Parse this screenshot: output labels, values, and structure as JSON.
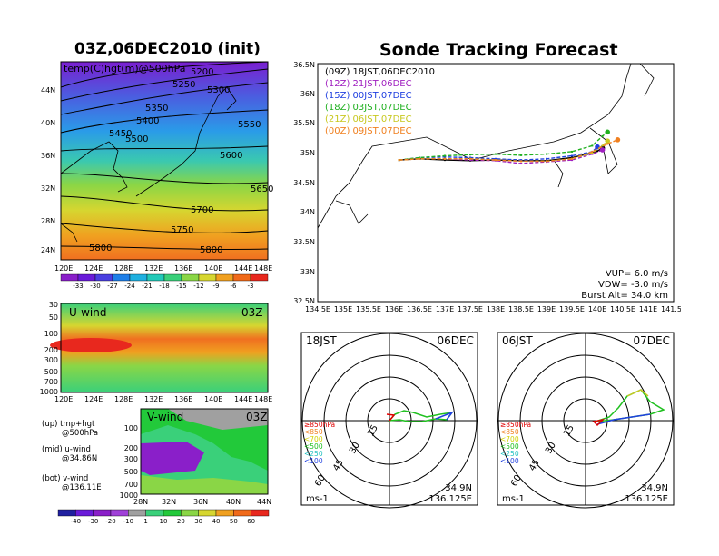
{
  "left_title": "03Z,06DEC2010 (init)",
  "main_title": "Sonde Tracking Forecast",
  "map_panel": {
    "label": "temp(C)hgt(m)@500hPa",
    "x_ticks": [
      "120E",
      "124E",
      "128E",
      "132E",
      "136E",
      "140E",
      "144E",
      "148E"
    ],
    "y_ticks": [
      "24N",
      "28N",
      "32N",
      "36N",
      "40N",
      "44N"
    ],
    "contour_labels": [
      "5200",
      "5250",
      "5300",
      "5350",
      "5400",
      "5450",
      "5500",
      "5550",
      "5600",
      "5650",
      "5700",
      "5750",
      "5800",
      "5800"
    ]
  },
  "temp_colorbar": [
    "-33",
    "-30",
    "-27",
    "-24",
    "-21",
    "-18",
    "-15",
    "-12",
    "-9",
    "-6",
    "-3"
  ],
  "temp_colors": [
    "#8a1fc9",
    "#6a1bd9",
    "#4a3fe0",
    "#1f7fe8",
    "#1fb0e0",
    "#22c9b8",
    "#3ad07a",
    "#8ad646",
    "#d6d630",
    "#f0a020",
    "#f06a1a",
    "#e8281e"
  ],
  "uwind_panel": {
    "label": "U-wind",
    "time": "03Z",
    "y_ticks": [
      "30",
      "50",
      "100",
      "200",
      "300",
      "500",
      "700",
      "1000"
    ],
    "x_ticks": [
      "120E",
      "124E",
      "128E",
      "132E",
      "136E",
      "140E",
      "144E",
      "148E"
    ]
  },
  "vwind_panel": {
    "label": "V-wind",
    "time": "03Z",
    "y_ticks": [
      "100",
      "200",
      "300",
      "500",
      "700",
      "1000"
    ],
    "x_ticks": [
      "28N",
      "32N",
      "36N",
      "40N",
      "44N"
    ]
  },
  "wind_colorbar": [
    "-40",
    "-30",
    "-20",
    "-10",
    "1",
    "10",
    "20",
    "30",
    "40",
    "50",
    "60"
  ],
  "wind_colors": [
    "#2020a0",
    "#6a1bd9",
    "#8a1fc9",
    "#a040d8",
    "#a0a0a0",
    "#3ad07a",
    "#22c93a",
    "#8ad646",
    "#d6d630",
    "#f0a020",
    "#f06a1a",
    "#e8281e"
  ],
  "notes": [
    {
      "a": "(up) tmp+hgt",
      "b": "@500hPa"
    },
    {
      "a": "(mid) u-wind",
      "b": "@34.86N"
    },
    {
      "a": "(bot) v-wind",
      "b": "@136.11E"
    }
  ],
  "track_panel": {
    "x_ticks": [
      "134.5E",
      "135E",
      "135.5E",
      "136E",
      "136.5E",
      "137E",
      "137.5E",
      "138E",
      "138.5E",
      "139E",
      "139.5E",
      "140E",
      "140.5E",
      "141E",
      "141.5E"
    ],
    "y_ticks": [
      "36.5N",
      "36N",
      "35.5N",
      "35N",
      "34.5N",
      "34N",
      "33.5N",
      "33N",
      "32.5N"
    ],
    "legend": [
      {
        "text": "(09Z)  18JST,06DEC2010",
        "color": "#000000"
      },
      {
        "text": "(12Z)  21JST,06DEC",
        "color": "#a020c0"
      },
      {
        "text": "(15Z)  00JST,07DEC",
        "color": "#2040e0"
      },
      {
        "text": "(18Z)  03JST,07DEC",
        "color": "#20b020"
      },
      {
        "text": "(21Z)  06JST,07DEC",
        "color": "#c8c820"
      },
      {
        "text": "(00Z)  09JST,07DEC",
        "color": "#f08020"
      }
    ],
    "params": [
      "VUP= 6.0 m/s",
      "VDW= -3.0 m/s",
      "Burst Alt= 34.0 km"
    ]
  },
  "chart_data": {
    "type": "line",
    "title": "Sonde Tracking Forecast",
    "xlim": [
      134.5,
      141.5
    ],
    "ylim": [
      32.5,
      36.5
    ],
    "series": [
      {
        "name": "(09Z)  18JST,06DEC2010",
        "color": "#000000",
        "points": [
          [
            136.1,
            34.88
          ],
          [
            136.5,
            34.9
          ],
          [
            137.0,
            34.88
          ],
          [
            137.5,
            34.87
          ],
          [
            138.0,
            34.88
          ],
          [
            138.5,
            34.87
          ],
          [
            139.0,
            34.87
          ],
          [
            139.5,
            34.92
          ],
          [
            139.8,
            34.98
          ],
          [
            140.0,
            35.03
          ],
          [
            140.1,
            35.08
          ]
        ]
      },
      {
        "name": "(12Z)  21JST,06DEC",
        "color": "#a020c0",
        "points": [
          [
            136.1,
            34.88
          ],
          [
            136.5,
            34.9
          ],
          [
            137.0,
            34.9
          ],
          [
            137.5,
            34.88
          ],
          [
            138.0,
            34.87
          ],
          [
            138.5,
            34.82
          ],
          [
            139.0,
            34.85
          ],
          [
            139.5,
            34.88
          ],
          [
            139.9,
            34.98
          ],
          [
            140.1,
            35.05
          ]
        ]
      },
      {
        "name": "(15Z)  00JST,07DEC",
        "color": "#2040e0",
        "points": [
          [
            136.1,
            34.88
          ],
          [
            136.5,
            34.92
          ],
          [
            137.0,
            34.93
          ],
          [
            137.5,
            34.92
          ],
          [
            138.0,
            34.9
          ],
          [
            138.5,
            34.88
          ],
          [
            139.0,
            34.9
          ],
          [
            139.5,
            34.95
          ],
          [
            139.9,
            35.02
          ],
          [
            140.0,
            35.1
          ]
        ]
      },
      {
        "name": "(18Z)  03JST,07DEC",
        "color": "#20b020",
        "points": [
          [
            136.1,
            34.88
          ],
          [
            136.5,
            34.92
          ],
          [
            137.0,
            34.95
          ],
          [
            137.5,
            34.97
          ],
          [
            138.0,
            34.98
          ],
          [
            138.5,
            34.96
          ],
          [
            139.0,
            34.98
          ],
          [
            139.5,
            35.02
          ],
          [
            139.9,
            35.12
          ],
          [
            140.1,
            35.28
          ],
          [
            140.2,
            35.35
          ]
        ]
      },
      {
        "name": "(21Z)  06JST,07DEC",
        "color": "#c8c820",
        "points": [
          [
            136.1,
            34.88
          ],
          [
            136.5,
            34.9
          ],
          [
            137.0,
            34.9
          ],
          [
            137.5,
            34.9
          ],
          [
            138.0,
            34.88
          ],
          [
            138.5,
            34.86
          ],
          [
            139.0,
            34.86
          ],
          [
            139.5,
            34.9
          ],
          [
            139.9,
            35.0
          ],
          [
            140.1,
            35.12
          ],
          [
            140.2,
            35.2
          ]
        ]
      },
      {
        "name": "(00Z)  09JST,07DEC",
        "color": "#f08020",
        "points": [
          [
            136.1,
            34.88
          ],
          [
            136.5,
            34.9
          ],
          [
            137.0,
            34.9
          ],
          [
            137.5,
            34.9
          ],
          [
            138.0,
            34.88
          ],
          [
            138.5,
            34.86
          ],
          [
            139.0,
            34.86
          ],
          [
            139.5,
            34.9
          ],
          [
            139.9,
            35.02
          ],
          [
            140.2,
            35.15
          ],
          [
            140.4,
            35.22
          ]
        ]
      }
    ]
  },
  "polar1": {
    "time": "18JST",
    "date": "06DEC",
    "rings": [
      "15",
      "30",
      "45",
      "60"
    ],
    "legend": [
      {
        "text": "≥850hPa",
        "color": "#e00000"
      },
      {
        "text": "<850",
        "color": "#f08020"
      },
      {
        "text": "<700",
        "color": "#d0d000"
      },
      {
        "text": "<500",
        "color": "#20c020"
      },
      {
        "text": "<250",
        "color": "#20c0c0"
      },
      {
        "text": "<100",
        "color": "#2040e0"
      }
    ],
    "unit": "ms-1",
    "lat": "34.9N",
    "lon": "136.125E"
  },
  "polar2": {
    "time": "06JST",
    "date": "07DEC",
    "rings": [
      "15",
      "30",
      "45",
      "60"
    ],
    "legend": [
      {
        "text": "≥850hPa",
        "color": "#e00000"
      },
      {
        "text": "<850",
        "color": "#f08020"
      },
      {
        "text": "<700",
        "color": "#d0d000"
      },
      {
        "text": "<500",
        "color": "#20c020"
      },
      {
        "text": "<250",
        "color": "#20c0c0"
      },
      {
        "text": "<100",
        "color": "#2040e0"
      }
    ],
    "unit": "ms-1",
    "lat": "34.9N",
    "lon": "136.125E"
  }
}
